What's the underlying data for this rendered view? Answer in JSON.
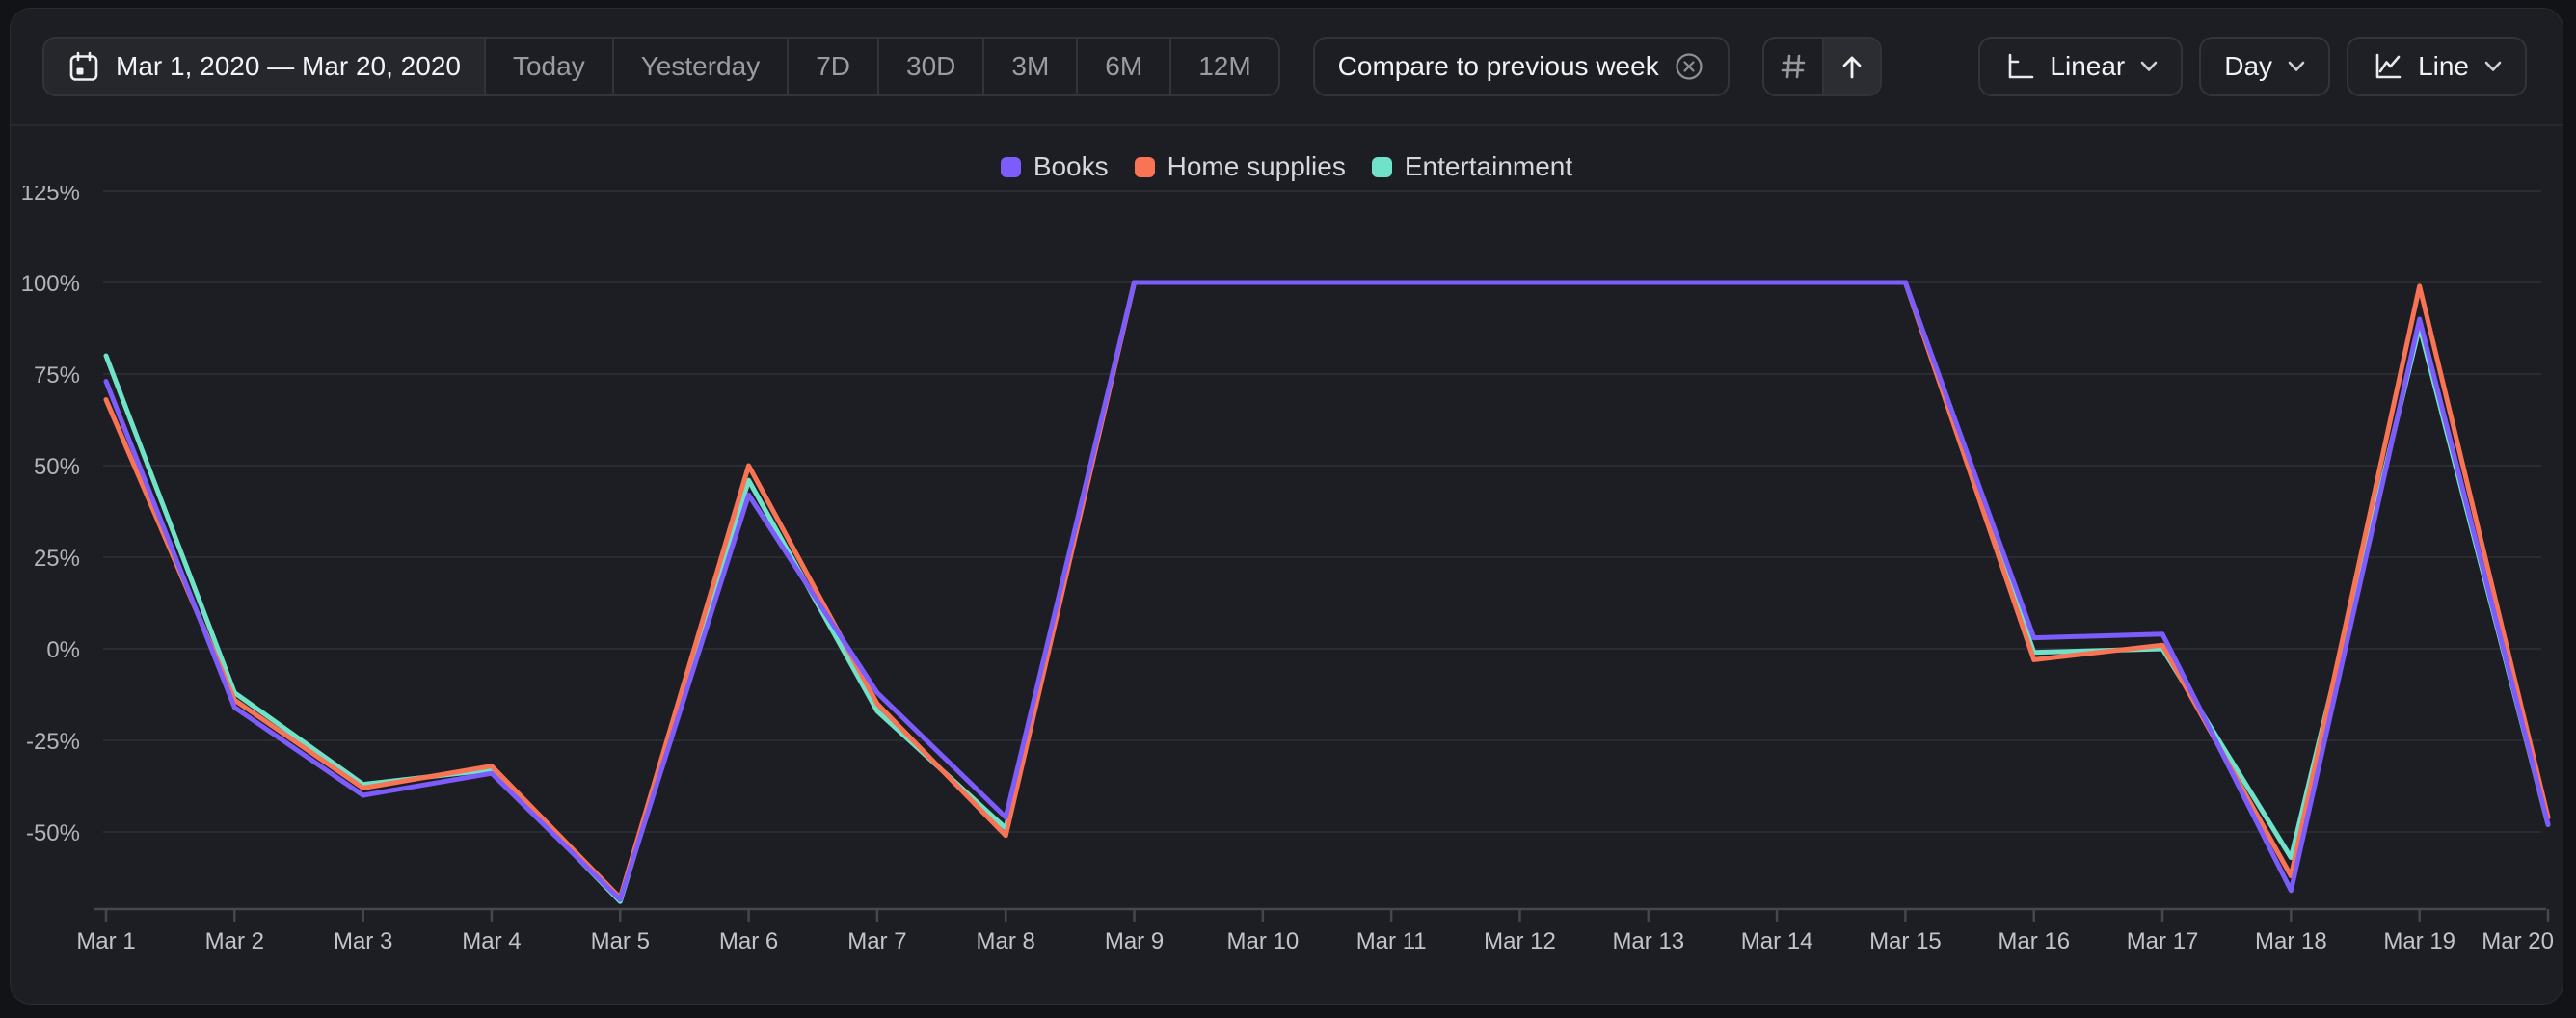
{
  "toolbar": {
    "date_range": "Mar 1, 2020 — Mar 20, 2020",
    "presets": [
      "Today",
      "Yesterday",
      "7D",
      "30D",
      "3M",
      "6M",
      "12M"
    ],
    "compare_label": "Compare to previous week",
    "scale_label": "Linear",
    "interval_label": "Day",
    "chart_type_label": "Line"
  },
  "colors": {
    "books": "#7c5cfa",
    "home_supplies": "#f97455",
    "entertainment": "#6fe2c9",
    "panel_bg": "#1d1e23",
    "page_bg": "#121317"
  },
  "chart_data": {
    "type": "line",
    "title": "",
    "xlabel": "",
    "ylabel": "",
    "ylim": [
      -71,
      130
    ],
    "grid": true,
    "legend_position": "top-center",
    "y_ticks": [
      {
        "label": "125%",
        "value": 125
      },
      {
        "label": "100%",
        "value": 100
      },
      {
        "label": "75%",
        "value": 75
      },
      {
        "label": "50%",
        "value": 50
      },
      {
        "label": "25%",
        "value": 25
      },
      {
        "label": "0%",
        "value": 0
      },
      {
        "label": "-25%",
        "value": -25
      },
      {
        "label": "-50%",
        "value": -50
      }
    ],
    "x_labels": [
      "Mar 1",
      "Mar 2",
      "Mar 3",
      "Mar 4",
      "Mar 5",
      "Mar 6",
      "Mar 7",
      "Mar 8",
      "Mar 9",
      "Mar 10",
      "Mar 11",
      "Mar 12",
      "Mar 13",
      "Mar 14",
      "Mar 15",
      "Mar 16",
      "Mar 17",
      "Mar 18",
      "Mar 19",
      "Mar 20"
    ],
    "series": [
      {
        "name": "Books",
        "color": "#7c5cfa",
        "values": [
          73,
          -16,
          -40,
          -34,
          -68.5,
          42,
          -12,
          -46,
          100,
          100,
          100,
          100,
          100,
          100,
          100,
          3,
          4,
          -66,
          90,
          -48
        ]
      },
      {
        "name": "Home supplies",
        "color": "#f97455",
        "values": [
          68,
          -14,
          -38,
          -32,
          -68,
          50,
          -15,
          -51,
          100,
          100,
          100,
          100,
          100,
          100,
          100,
          -3,
          1,
          -62,
          99,
          -46
        ]
      },
      {
        "name": "Entertainment",
        "color": "#6fe2c9",
        "values": [
          80,
          -12,
          -37,
          -33,
          -69,
          46,
          -17,
          -49,
          100,
          100,
          100,
          100,
          100,
          100,
          100,
          -1,
          0,
          -57,
          88,
          -48
        ]
      }
    ],
    "draw_order": [
      2,
      1,
      0
    ]
  }
}
